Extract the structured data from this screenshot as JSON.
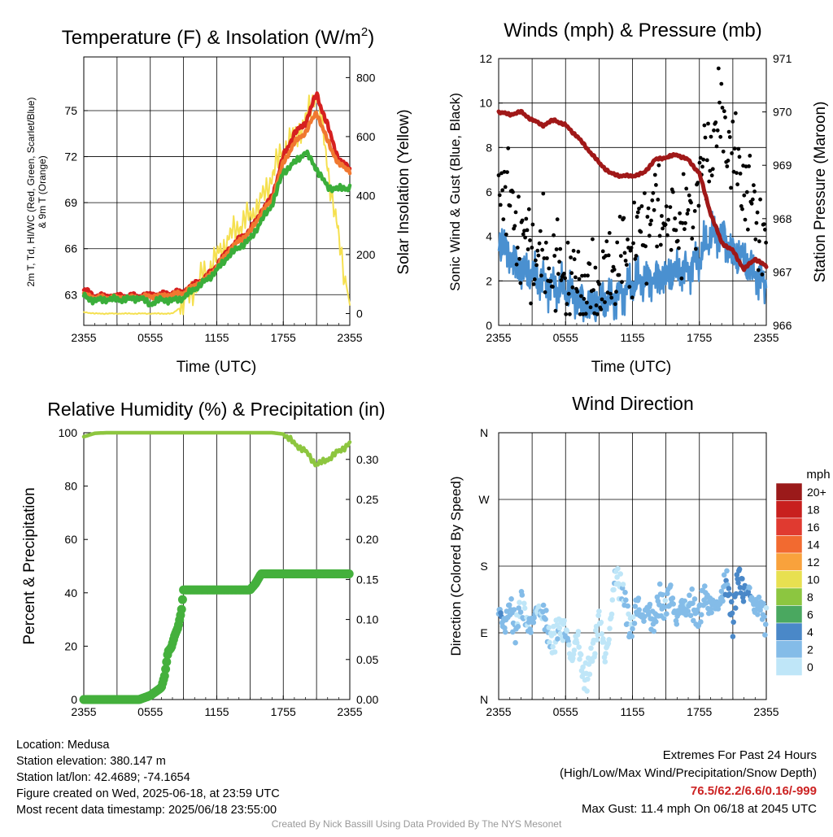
{
  "chart_data": [
    {
      "type": "line",
      "title": "Temperature (F) & Insolation (W/m²)",
      "title_main": "Temperature (F) & Insolation (W/m",
      "title_sup": "2",
      "title_end": ")",
      "xlabel": "Time (UTC)",
      "ylabel_left_line1": "2m T, Td, HI/WC (Red, Green, Scarlet/Blue)",
      "ylabel_left_line2": "& 9m T (Orange)",
      "ylabel_right": "Solar Insolation (Yellow)",
      "x_ticks": [
        "2355",
        "0555",
        "1155",
        "1755",
        "2355"
      ],
      "ylim_left": [
        61,
        78.5
      ],
      "y_ticks_left": [
        63,
        66,
        69,
        72,
        75
      ],
      "ylim_right": [
        -40,
        870
      ],
      "y_ticks_right": [
        0,
        200,
        400,
        600,
        800
      ],
      "series": [
        {
          "color": "#d62020",
          "axis": "left",
          "x": [
            0,
            1,
            2,
            3,
            4,
            5,
            6,
            7,
            8,
            9,
            10,
            11,
            12,
            13,
            14,
            15,
            16,
            17,
            18,
            19,
            20,
            21,
            22,
            23,
            24
          ],
          "values": [
            63.3,
            62.9,
            62.9,
            62.9,
            62.9,
            62.9,
            63.0,
            63.0,
            63.1,
            63.2,
            63.7,
            64.1,
            64.9,
            65.9,
            66.6,
            67.2,
            68.4,
            69.4,
            72.0,
            73.5,
            74.2,
            76.1,
            74.0,
            71.8,
            71.2
          ]
        },
        {
          "color": "#f07830",
          "axis": "left",
          "x": [
            0,
            1,
            2,
            3,
            4,
            5,
            6,
            7,
            8,
            9,
            10,
            11,
            12,
            13,
            14,
            15,
            16,
            17,
            18,
            19,
            20,
            21,
            22,
            23,
            24
          ],
          "values": [
            63.0,
            62.8,
            62.8,
            62.8,
            62.8,
            62.8,
            62.9,
            62.9,
            63.0,
            63.1,
            63.6,
            64.0,
            64.8,
            65.8,
            66.5,
            67.1,
            68.3,
            69.2,
            71.6,
            72.9,
            73.6,
            74.9,
            73.0,
            71.5,
            71.1
          ]
        },
        {
          "color": "#3aae3a",
          "axis": "left",
          "x": [
            0,
            1,
            2,
            3,
            4,
            5,
            6,
            7,
            8,
            9,
            10,
            11,
            12,
            13,
            14,
            15,
            16,
            17,
            18,
            19,
            20,
            21,
            22,
            23,
            24
          ],
          "values": [
            62.9,
            62.6,
            62.7,
            62.7,
            62.7,
            62.8,
            62.4,
            62.7,
            62.6,
            62.8,
            63.4,
            63.9,
            64.6,
            65.5,
            66.1,
            66.6,
            67.8,
            68.9,
            71.0,
            71.6,
            72.3,
            71.2,
            70.0,
            69.9,
            70.0
          ]
        },
        {
          "color": "#f5e050",
          "axis": "right",
          "x": [
            0,
            1,
            2,
            3,
            4,
            5,
            6,
            7,
            8,
            9,
            10,
            11,
            12,
            13,
            14,
            15,
            16,
            17,
            18,
            19,
            20,
            21,
            22,
            23,
            24
          ],
          "values": [
            5,
            0,
            0,
            0,
            0,
            0,
            0,
            0,
            0,
            30,
            90,
            140,
            190,
            250,
            300,
            330,
            380,
            470,
            560,
            600,
            650,
            760,
            500,
            250,
            30
          ]
        }
      ]
    },
    {
      "type": "line",
      "title": "Winds (mph) & Pressure (mb)",
      "xlabel": "Time (UTC)",
      "ylabel_left": "Sonic Wind & Gust (Blue, Black)",
      "ylabel_right": "Station Pressure (Maroon)",
      "x_ticks": [
        "2355",
        "0555",
        "1155",
        "1755",
        "2355"
      ],
      "ylim_left": [
        0,
        12
      ],
      "y_ticks_left": [
        0,
        2,
        4,
        6,
        8,
        10,
        12
      ],
      "ylim_right": [
        966,
        971
      ],
      "y_ticks_right": [
        966,
        967,
        968,
        969,
        970,
        971
      ],
      "series": [
        {
          "name": "Sonic Wind",
          "color": "#4a90d0",
          "axis": "left",
          "x": [
            0,
            1,
            2,
            3,
            4,
            5,
            6,
            7,
            8,
            9,
            10,
            11,
            12,
            13,
            14,
            15,
            16,
            17,
            18,
            19,
            20,
            21,
            22,
            23,
            24
          ],
          "values": [
            3.8,
            3.2,
            2.5,
            2.2,
            2.0,
            1.8,
            1.5,
            1.2,
            1.0,
            0.9,
            1.2,
            1.5,
            1.8,
            2.0,
            2.2,
            2.1,
            2.4,
            2.6,
            3.0,
            4.0,
            4.2,
            3.2,
            2.9,
            2.4,
            1.8
          ]
        },
        {
          "name": "Gust",
          "color": "#000000",
          "axis": "left",
          "mode": "markers",
          "x": [
            0,
            1,
            2,
            3,
            4,
            5,
            6,
            7,
            8,
            9,
            10,
            11,
            12,
            13,
            14,
            15,
            16,
            17,
            18,
            19,
            20,
            21,
            22,
            23,
            24
          ],
          "values": [
            7.0,
            5.5,
            4.0,
            3.4,
            3.0,
            2.6,
            2.2,
            1.8,
            1.5,
            1.7,
            2.4,
            3.0,
            3.6,
            4.4,
            5.2,
            5.0,
            4.5,
            4.8,
            6.5,
            8.0,
            9.5,
            7.5,
            6.5,
            5.0,
            3.5
          ]
        },
        {
          "name": "Station Pressure",
          "color": "#a01818",
          "axis": "right",
          "x": [
            0,
            1,
            2,
            3,
            4,
            5,
            6,
            7,
            8,
            9,
            10,
            11,
            12,
            13,
            14,
            15,
            16,
            17,
            18,
            19,
            20,
            21,
            22,
            23,
            24
          ],
          "values": [
            970.0,
            969.95,
            970.0,
            969.85,
            969.75,
            969.85,
            969.75,
            969.55,
            969.3,
            969.05,
            968.85,
            968.8,
            968.8,
            968.85,
            969.1,
            969.15,
            969.2,
            969.1,
            968.85,
            968.1,
            967.55,
            967.4,
            967.05,
            967.25,
            967.1
          ]
        }
      ]
    },
    {
      "type": "scatter",
      "title": "Relative Humidity (%) & Precipitation (in)",
      "ylabel_left": "Percent & Precipitation",
      "x_ticks": [
        "2355",
        "0555",
        "1155",
        "1755",
        "2355"
      ],
      "ylim_left": [
        0,
        100
      ],
      "y_ticks_left": [
        0,
        20,
        40,
        60,
        80,
        100
      ],
      "ylim_right": [
        0,
        0.3333
      ],
      "y_ticks_right": [
        "0.00",
        "0.05",
        "0.10",
        "0.15",
        "0.20",
        "0.25",
        "0.30"
      ],
      "series": [
        {
          "name": "Relative Humidity",
          "color": "#8dc63f",
          "axis": "left",
          "x": [
            0,
            1,
            2,
            3,
            4,
            5,
            6,
            7,
            8,
            9,
            10,
            11,
            12,
            13,
            14,
            15,
            16,
            17,
            18,
            19,
            20,
            21,
            22,
            23,
            24
          ],
          "values": [
            98.5,
            99.8,
            100,
            100,
            100,
            100,
            100,
            100,
            100,
            100,
            100,
            100,
            100,
            100,
            100,
            100,
            100,
            100,
            99.5,
            96,
            93,
            88,
            90,
            93,
            96
          ]
        },
        {
          "name": "Precipitation",
          "color": "#44b03c",
          "axis": "right",
          "x": [
            0,
            1,
            2,
            3,
            4,
            5,
            6,
            7,
            7.3,
            7.6,
            7.9,
            8.2,
            8.5,
            8.8,
            9,
            9.5,
            10,
            11,
            12,
            13,
            14,
            15,
            15.5,
            16,
            17,
            18,
            19,
            20,
            21,
            22,
            23,
            24
          ],
          "values": [
            0,
            0,
            0,
            0,
            0,
            0,
            0.005,
            0.015,
            0.03,
            0.06,
            0.065,
            0.08,
            0.09,
            0.11,
            0.137,
            0.137,
            0.137,
            0.137,
            0.137,
            0.137,
            0.137,
            0.137,
            0.145,
            0.157,
            0.157,
            0.157,
            0.157,
            0.157,
            0.157,
            0.157,
            0.157,
            0.157
          ]
        }
      ]
    },
    {
      "type": "scatter",
      "title": "Wind Direction",
      "ylabel_left": "Direction (Colored By Speed)",
      "x_ticks": [
        "2355",
        "0555",
        "1155",
        "1755",
        "2355"
      ],
      "y_ticks_left": [
        "N",
        "E",
        "S",
        "W",
        "N"
      ],
      "ylim_left": [
        0,
        360
      ],
      "legend_title": "mph",
      "legend_labels": [
        "20+",
        "18",
        "16",
        "14",
        "12",
        "10",
        "8",
        "6",
        "4",
        "2",
        "0"
      ],
      "legend_colors": [
        "#9b1a1a",
        "#c8201e",
        "#e03a30",
        "#f26a30",
        "#f9a23c",
        "#e8e050",
        "#8cc640",
        "#4aa860",
        "#4a88c8",
        "#84bce8",
        "#bfe6f8"
      ],
      "series": [
        {
          "name": "Wind Direction",
          "x": [
            0,
            0.5,
            1,
            1.5,
            2,
            2.5,
            3,
            3.5,
            4,
            4.5,
            5,
            5.5,
            6,
            6.5,
            7,
            7.5,
            8,
            8.5,
            9,
            9.5,
            10,
            10.5,
            11,
            11.5,
            12,
            12.5,
            13,
            13.5,
            14,
            14.5,
            15,
            15.5,
            16,
            16.5,
            17,
            17.5,
            18,
            18.5,
            19,
            19.5,
            20,
            20.5,
            21,
            21.5,
            22,
            22.5,
            23,
            23.5,
            24
          ],
          "values": [
            115,
            105,
            120,
            100,
            125,
            110,
            95,
            130,
            110,
            90,
            75,
            105,
            90,
            55,
            85,
            40,
            30,
            70,
            110,
            60,
            95,
            175,
            150,
            115,
            95,
            130,
            110,
            120,
            105,
            135,
            125,
            140,
            110,
            125,
            130,
            120,
            115,
            140,
            130,
            120,
            145,
            155,
            110,
            165,
            150,
            140,
            130,
            120,
            110
          ],
          "speeds": [
            3.5,
            3.2,
            2.8,
            2.6,
            2.2,
            2.0,
            3.0,
            1.5,
            2.8,
            1.8,
            1.6,
            1.2,
            2.5,
            1.0,
            0.8,
            0.6,
            0.4,
            1.0,
            0.9,
            0.8,
            1.0,
            1.5,
            2.0,
            2.2,
            2.0,
            2.6,
            3.0,
            2.5,
            3.3,
            2.6,
            2.4,
            2.8,
            3.0,
            2.4,
            2.7,
            3.2,
            3.0,
            2.6,
            3.5,
            3.2,
            3.8,
            4.0,
            6.0,
            4.5,
            5.5,
            3.6,
            2.8,
            2.4,
            2.0
          ]
        }
      ]
    }
  ],
  "footer": {
    "location": "Location: Medusa",
    "elevation": "Station elevation: 380.147 m",
    "latlon": "Station lat/lon: 42.4689; -74.1654",
    "created": "Figure created on Wed, 2025-06-18, at 23:59 UTC",
    "recent": "Most recent data timestamp: 2025/06/18 23:55:00",
    "extremes_title": "Extremes For Past 24 Hours",
    "extremes_sub": "(High/Low/Max Wind/Precipitation/Snow Depth)",
    "extremes_values": "76.5/62.2/6.6/0.16/-999",
    "max_gust": "Max Gust: 11.4 mph On 06/18 at 2045 UTC",
    "credit": "Created By Nick Bassill Using Data Provided By The NYS Mesonet"
  }
}
